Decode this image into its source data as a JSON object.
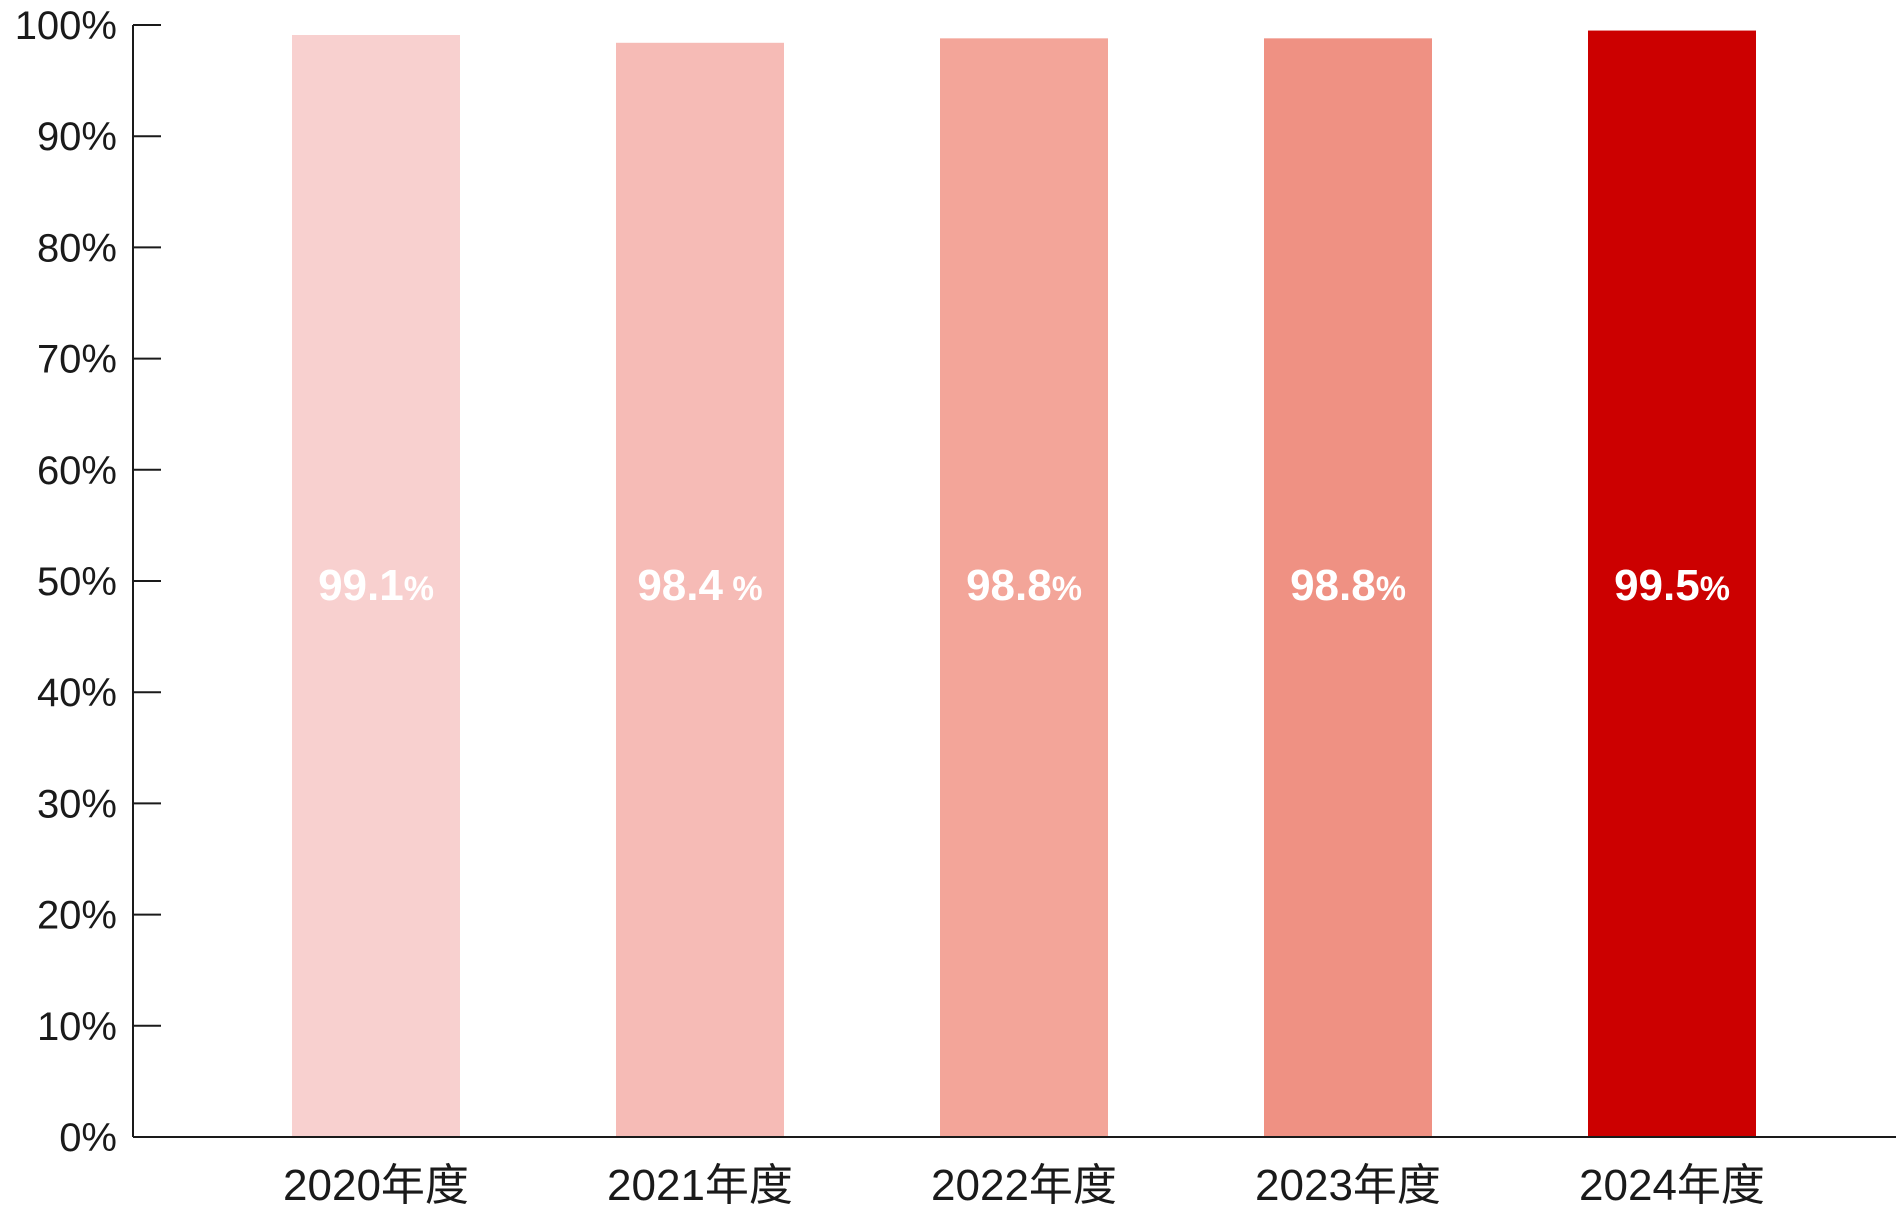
{
  "chart_data": {
    "type": "bar",
    "categories": [
      "2020年度",
      "2021年度",
      "2022年度",
      "2023年度",
      "2024年度"
    ],
    "values": [
      99.1,
      98.4,
      98.8,
      98.8,
      99.5
    ],
    "data_labels": [
      {
        "number": "99.1",
        "unit": "%"
      },
      {
        "number": "98.4",
        "unit": " %"
      },
      {
        "number": "98.8",
        "unit": "%"
      },
      {
        "number": "98.8",
        "unit": "%"
      },
      {
        "number": "99.5",
        "unit": "%"
      }
    ],
    "bar_colors": [
      "#f8d0cf",
      "#f6bbb6",
      "#f3a599",
      "#ef9183",
      "#cc0000"
    ],
    "ylim": [
      0,
      100
    ],
    "y_ticks": [
      0,
      10,
      20,
      30,
      40,
      50,
      60,
      70,
      80,
      90,
      100
    ],
    "y_tick_labels": [
      "0%",
      "10%",
      "20%",
      "30%",
      "40%",
      "50%",
      "60%",
      "70%",
      "80%",
      "90%",
      "100%"
    ],
    "grid": false,
    "legend": "none",
    "title": "",
    "xlabel": "",
    "ylabel": ""
  }
}
